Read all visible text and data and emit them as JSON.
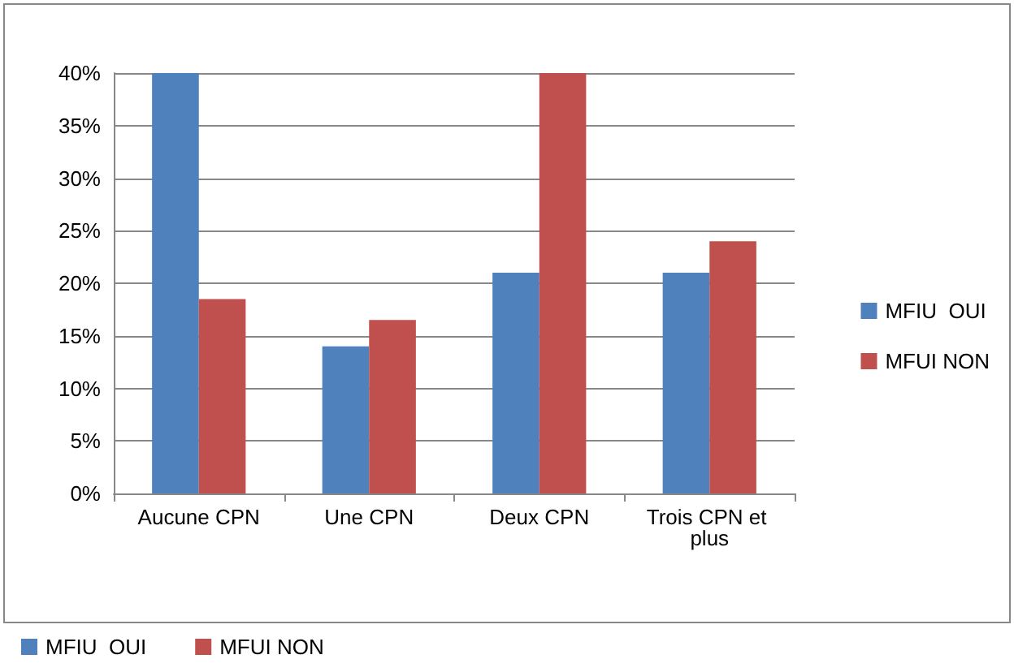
{
  "chart_data": {
    "type": "bar",
    "categories": [
      "Aucune CPN",
      "Une CPN",
      "Deux CPN",
      "Trois CPN et plus"
    ],
    "series": [
      {
        "name": "MFIU  OUI",
        "color": "#4f81bd",
        "values": [
          40,
          14,
          21,
          21
        ]
      },
      {
        "name": "MFUI NON",
        "color": "#c0504d",
        "values": [
          18.5,
          16.5,
          40,
          24
        ]
      }
    ],
    "ylim": [
      0,
      40
    ],
    "yticks": [
      {
        "value": 0,
        "label": "0%"
      },
      {
        "value": 5,
        "label": "5%"
      },
      {
        "value": 10,
        "label": "10%"
      },
      {
        "value": 15,
        "label": "15%"
      },
      {
        "value": 20,
        "label": "20%"
      },
      {
        "value": 25,
        "label": "25%"
      },
      {
        "value": 30,
        "label": "30%"
      },
      {
        "value": 35,
        "label": "35%"
      },
      {
        "value": 40,
        "label": "40%"
      }
    ],
    "grid": "y",
    "legend": "right"
  }
}
